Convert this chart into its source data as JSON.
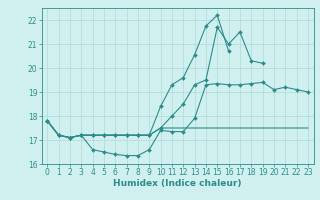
{
  "title": "",
  "xlabel": "Humidex (Indice chaleur)",
  "x_values": [
    0,
    1,
    2,
    3,
    4,
    5,
    6,
    7,
    8,
    9,
    10,
    11,
    12,
    13,
    14,
    15,
    16,
    17,
    18,
    19,
    20,
    21,
    22,
    23
  ],
  "line1": [
    17.8,
    17.2,
    17.1,
    17.2,
    16.6,
    16.5,
    16.4,
    16.35,
    16.35,
    16.6,
    17.4,
    17.35,
    17.35,
    17.9,
    19.3,
    19.35,
    19.3,
    19.3,
    19.35,
    19.4,
    19.1,
    19.2,
    19.1,
    19.0
  ],
  "line2": [
    17.8,
    17.2,
    17.1,
    17.2,
    17.2,
    17.2,
    17.2,
    17.2,
    17.2,
    17.2,
    17.5,
    18.0,
    18.5,
    19.3,
    19.5,
    21.7,
    21.0,
    21.5,
    20.3,
    20.2,
    null,
    null,
    null,
    null
  ],
  "line3": [
    17.8,
    17.2,
    17.1,
    17.2,
    17.2,
    17.2,
    17.2,
    17.2,
    17.2,
    17.2,
    18.4,
    19.3,
    19.6,
    20.55,
    21.75,
    22.2,
    20.7,
    null,
    null,
    null,
    null,
    null,
    null,
    null
  ],
  "line4": [
    17.8,
    17.2,
    17.1,
    17.2,
    17.2,
    17.2,
    17.2,
    17.2,
    17.2,
    17.2,
    17.5,
    17.5,
    17.5,
    17.5,
    17.5,
    17.5,
    17.5,
    17.5,
    17.5,
    17.5,
    17.5,
    17.5,
    17.5,
    17.5
  ],
  "color": "#2e8b8b",
  "bg_color": "#d0f0f0",
  "grid_color": "#b0d8d8",
  "ylim": [
    16,
    22.5
  ],
  "xlim": [
    -0.5,
    23.5
  ],
  "yticks": [
    16,
    17,
    18,
    19,
    20,
    21,
    22
  ],
  "xticks": [
    0,
    1,
    2,
    3,
    4,
    5,
    6,
    7,
    8,
    9,
    10,
    11,
    12,
    13,
    14,
    15,
    16,
    17,
    18,
    19,
    20,
    21,
    22,
    23
  ],
  "tick_fontsize": 5.5,
  "xlabel_fontsize": 6.5,
  "marker_size": 2.0,
  "line_width": 0.8
}
